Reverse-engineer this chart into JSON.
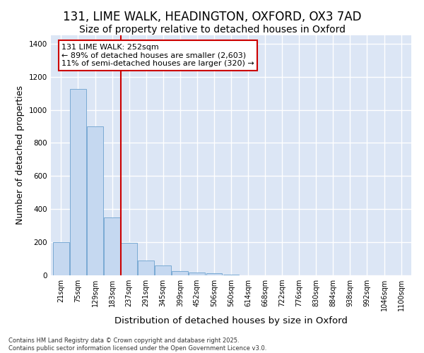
{
  "title_line1": "131, LIME WALK, HEADINGTON, OXFORD, OX3 7AD",
  "title_line2": "Size of property relative to detached houses in Oxford",
  "xlabel": "Distribution of detached houses by size in Oxford",
  "ylabel": "Number of detached properties",
  "bar_color": "#c5d8f0",
  "bar_edge_color": "#7aaad4",
  "plot_bg_color": "#dce6f5",
  "fig_bg_color": "#ffffff",
  "grid_color": "#ffffff",
  "annotation_box_color": "#cc0000",
  "property_line_color": "#cc0000",
  "property_label": "131 LIME WALK: 252sqm",
  "annotation_line1": "← 89% of detached houses are smaller (2,603)",
  "annotation_line2": "11% of semi-detached houses are larger (320) →",
  "footnote_line1": "Contains HM Land Registry data © Crown copyright and database right 2025.",
  "footnote_line2": "Contains public sector information licensed under the Open Government Licence v3.0.",
  "categories": [
    "21sqm",
    "75sqm",
    "129sqm",
    "183sqm",
    "237sqm",
    "291sqm",
    "345sqm",
    "399sqm",
    "452sqm",
    "506sqm",
    "560sqm",
    "614sqm",
    "668sqm",
    "722sqm",
    "776sqm",
    "830sqm",
    "884sqm",
    "938sqm",
    "992sqm",
    "1046sqm",
    "1100sqm"
  ],
  "values": [
    200,
    1125,
    900,
    350,
    195,
    90,
    60,
    25,
    18,
    12,
    5,
    0,
    0,
    0,
    0,
    0,
    0,
    0,
    0,
    0,
    0
  ],
  "ylim": [
    0,
    1450
  ],
  "yticks": [
    0,
    200,
    400,
    600,
    800,
    1000,
    1200,
    1400
  ],
  "property_line_x": 4,
  "title_fontsize": 12,
  "subtitle_fontsize": 10,
  "axis_label_fontsize": 9,
  "tick_fontsize": 7,
  "annot_fontsize": 8
}
